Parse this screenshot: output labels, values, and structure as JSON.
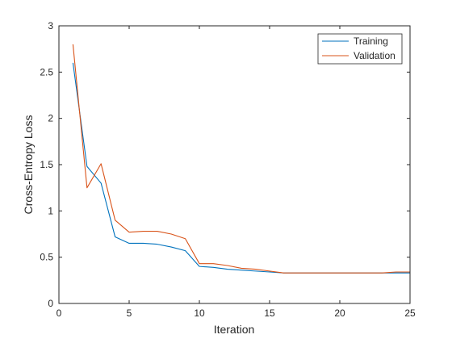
{
  "chart_data": {
    "type": "line",
    "title": "",
    "xlabel": "Iteration",
    "ylabel": "Cross-Entropy Loss",
    "xlim": [
      0,
      25
    ],
    "ylim": [
      0,
      3
    ],
    "xticks": [
      0,
      5,
      10,
      15,
      20,
      25
    ],
    "yticks": [
      0,
      0.5,
      1,
      1.5,
      2,
      2.5,
      3
    ],
    "xtick_labels": [
      "0",
      "5",
      "10",
      "15",
      "20",
      "25"
    ],
    "ytick_labels": [
      "0",
      "0.5",
      "1",
      "1.5",
      "2",
      "2.5",
      "3"
    ],
    "grid": false,
    "legend_position": "top-right",
    "series": [
      {
        "name": "Training",
        "color": "#0072BD",
        "x": [
          1,
          2,
          3,
          4,
          5,
          6,
          7,
          8,
          9,
          10,
          11,
          12,
          13,
          14,
          15,
          16,
          17,
          18,
          19,
          20,
          21,
          22,
          23,
          24,
          25
        ],
        "y": [
          2.6,
          1.48,
          1.3,
          0.72,
          0.65,
          0.65,
          0.64,
          0.61,
          0.57,
          0.4,
          0.39,
          0.37,
          0.36,
          0.35,
          0.34,
          0.33,
          0.33,
          0.33,
          0.33,
          0.33,
          0.33,
          0.33,
          0.33,
          0.33,
          0.33
        ]
      },
      {
        "name": "Validation",
        "color": "#D95319",
        "x": [
          1,
          2,
          3,
          4,
          5,
          6,
          7,
          8,
          9,
          10,
          11,
          12,
          13,
          14,
          15,
          16,
          17,
          18,
          19,
          20,
          21,
          22,
          23,
          24,
          25
        ],
        "y": [
          2.8,
          1.25,
          1.51,
          0.9,
          0.77,
          0.78,
          0.78,
          0.75,
          0.7,
          0.43,
          0.43,
          0.41,
          0.38,
          0.37,
          0.35,
          0.33,
          0.33,
          0.33,
          0.33,
          0.33,
          0.33,
          0.33,
          0.33,
          0.34,
          0.34
        ]
      }
    ]
  }
}
